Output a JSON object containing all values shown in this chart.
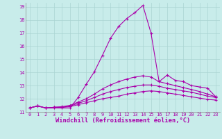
{
  "xlabel": "Windchill (Refroidissement éolien,°C)",
  "xlim": [
    -0.5,
    23.5
  ],
  "ylim": [
    11,
    19.3
  ],
  "xticks": [
    0,
    1,
    2,
    3,
    4,
    5,
    6,
    7,
    8,
    9,
    10,
    11,
    12,
    13,
    14,
    15,
    16,
    17,
    18,
    19,
    20,
    21,
    22,
    23
  ],
  "yticks": [
    11,
    12,
    13,
    14,
    15,
    16,
    17,
    18,
    19
  ],
  "background_color": "#c8ecea",
  "grid_color": "#aad4d2",
  "line_color": "#aa00aa",
  "line1_x": [
    0,
    1,
    2,
    3,
    4,
    5,
    6,
    7,
    8,
    9,
    10,
    11,
    12,
    13,
    14,
    15,
    16,
    17,
    18,
    19,
    20,
    21,
    22,
    23
  ],
  "line1_y": [
    11.3,
    11.45,
    11.3,
    11.3,
    11.3,
    11.3,
    12.1,
    13.1,
    14.05,
    15.3,
    16.6,
    17.5,
    18.1,
    18.55,
    19.1,
    17.0,
    13.3,
    13.8,
    13.4,
    13.3,
    13.0,
    12.9,
    12.8,
    12.15
  ],
  "line2_x": [
    0,
    1,
    2,
    3,
    4,
    5,
    6,
    7,
    8,
    9,
    10,
    11,
    12,
    13,
    14,
    15,
    16,
    17,
    18,
    19,
    20,
    21,
    22,
    23
  ],
  "line2_y": [
    11.3,
    11.45,
    11.3,
    11.35,
    11.35,
    11.4,
    11.55,
    11.7,
    11.85,
    12.0,
    12.1,
    12.2,
    12.35,
    12.45,
    12.55,
    12.6,
    12.55,
    12.45,
    12.35,
    12.25,
    12.15,
    12.05,
    11.95,
    11.9
  ],
  "line3_x": [
    0,
    1,
    2,
    3,
    4,
    5,
    6,
    7,
    8,
    9,
    10,
    11,
    12,
    13,
    14,
    15,
    16,
    17,
    18,
    19,
    20,
    21,
    22,
    23
  ],
  "line3_y": [
    11.3,
    11.45,
    11.3,
    11.35,
    11.35,
    11.45,
    11.65,
    11.85,
    12.1,
    12.35,
    12.55,
    12.7,
    12.85,
    12.95,
    13.05,
    13.05,
    12.95,
    12.8,
    12.7,
    12.6,
    12.5,
    12.35,
    12.2,
    12.1
  ],
  "line4_x": [
    0,
    1,
    2,
    3,
    4,
    5,
    6,
    7,
    8,
    9,
    10,
    11,
    12,
    13,
    14,
    15,
    16,
    17,
    18,
    19,
    20,
    21,
    22,
    23
  ],
  "line4_y": [
    11.3,
    11.45,
    11.3,
    11.35,
    11.4,
    11.5,
    11.75,
    12.0,
    12.35,
    12.75,
    13.05,
    13.3,
    13.5,
    13.65,
    13.75,
    13.65,
    13.3,
    13.15,
    13.0,
    12.85,
    12.7,
    12.55,
    12.35,
    12.15
  ],
  "tick_fontsize": 5.0,
  "label_fontsize": 6.2
}
